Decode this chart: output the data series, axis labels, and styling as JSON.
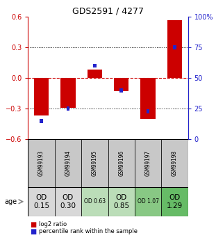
{
  "title": "GDS2591 / 4277",
  "samples": [
    "GSM99193",
    "GSM99194",
    "GSM99195",
    "GSM99196",
    "GSM99197",
    "GSM99198"
  ],
  "log2_ratios": [
    -0.37,
    -0.29,
    0.08,
    -0.13,
    -0.4,
    0.57
  ],
  "percentile_ranks": [
    15,
    25,
    60,
    40,
    23,
    75
  ],
  "age_labels": [
    "OD\n0.15",
    "OD\n0.30",
    "OD 0.63",
    "OD\n0.85",
    "OD 1.07",
    "OD\n1.29"
  ],
  "age_fontsize_large": [
    true,
    true,
    false,
    true,
    false,
    true
  ],
  "gsm_cell_color": "#c8c8c8",
  "cell_colors": [
    "#d8d8d8",
    "#d8d8d8",
    "#bbddb8",
    "#bbddb8",
    "#88c884",
    "#66bb66"
  ],
  "ylim": [
    -0.6,
    0.6
  ],
  "y2lim": [
    0,
    100
  ],
  "y_ticks": [
    -0.6,
    -0.3,
    0.0,
    0.3,
    0.6
  ],
  "y2_ticks": [
    0,
    25,
    50,
    75,
    100
  ],
  "y2_tick_labels": [
    "0",
    "25",
    "50",
    "75",
    "100%"
  ],
  "bar_color_red": "#cc0000",
  "bar_color_blue": "#2222cc",
  "grid_color": "#111111",
  "zero_line_color": "#cc0000",
  "bar_width": 0.55,
  "blue_sq_size": 0.04
}
